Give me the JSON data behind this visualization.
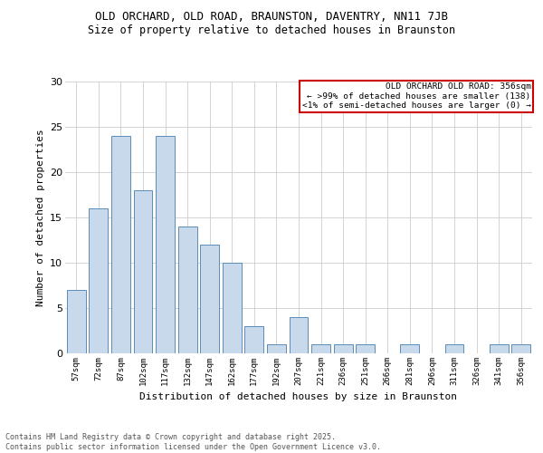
{
  "title_line1": "OLD ORCHARD, OLD ROAD, BRAUNSTON, DAVENTRY, NN11 7JB",
  "title_line2": "Size of property relative to detached houses in Braunston",
  "xlabel": "Distribution of detached houses by size in Braunston",
  "ylabel": "Number of detached properties",
  "categories": [
    "57sqm",
    "72sqm",
    "87sqm",
    "102sqm",
    "117sqm",
    "132sqm",
    "147sqm",
    "162sqm",
    "177sqm",
    "192sqm",
    "207sqm",
    "221sqm",
    "236sqm",
    "251sqm",
    "266sqm",
    "281sqm",
    "296sqm",
    "311sqm",
    "326sqm",
    "341sqm",
    "356sqm"
  ],
  "values": [
    7,
    16,
    24,
    18,
    24,
    14,
    12,
    10,
    3,
    1,
    4,
    1,
    1,
    1,
    0,
    1,
    0,
    1,
    0,
    1,
    1
  ],
  "bar_color": "#c9d9ec",
  "bar_edge_color": "#5b8db8",
  "ylim": [
    0,
    30
  ],
  "yticks": [
    0,
    5,
    10,
    15,
    20,
    25,
    30
  ],
  "legend_title": "OLD ORCHARD OLD ROAD: 356sqm",
  "legend_line2": "← >99% of detached houses are smaller (138)",
  "legend_line3": "<1% of semi-detached houses are larger (0) →",
  "legend_border_color": "#cc0000",
  "footer_line1": "Contains HM Land Registry data © Crown copyright and database right 2025.",
  "footer_line2": "Contains public sector information licensed under the Open Government Licence v3.0.",
  "background_color": "#ffffff",
  "grid_color": "#cccccc"
}
